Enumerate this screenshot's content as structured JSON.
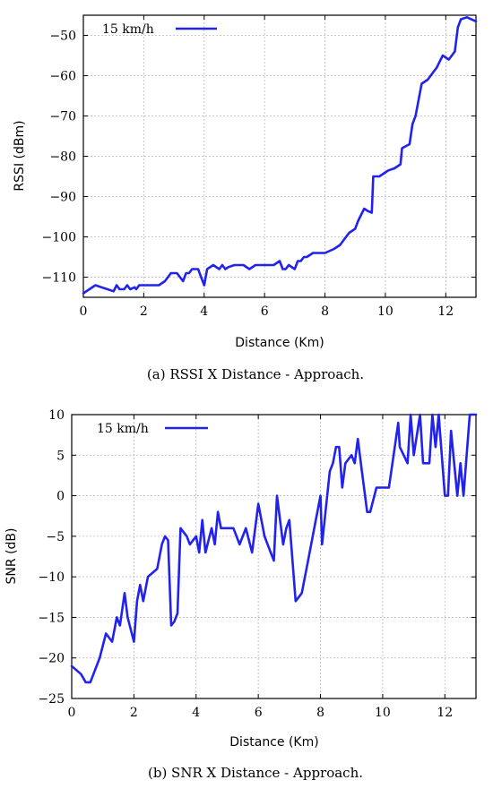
{
  "chart_data": [
    {
      "type": "line",
      "xlabel": "Distance (Km)",
      "ylabel": "RSSI (dBm)",
      "xlim": [
        0,
        13
      ],
      "ylim": [
        -115,
        -45
      ],
      "xticks": [
        0,
        2,
        4,
        6,
        8,
        10,
        12
      ],
      "yticks": [
        -110,
        -100,
        -90,
        -80,
        -70,
        -60,
        -50
      ],
      "grid": true,
      "legend_position": "top-left",
      "caption": "(a) RSSI X Distance - Approach.",
      "series": [
        {
          "name": "15 km/h",
          "color": "#2222ee",
          "x": [
            0,
            0.2,
            0.4,
            0.6,
            0.8,
            1.0,
            1.1,
            1.2,
            1.35,
            1.45,
            1.55,
            1.7,
            1.75,
            1.85,
            2.0,
            2.5,
            2.7,
            2.9,
            3.1,
            3.3,
            3.4,
            3.5,
            3.6,
            3.8,
            4.0,
            4.1,
            4.3,
            4.5,
            4.6,
            4.7,
            4.8,
            5.0,
            5.3,
            5.5,
            5.7,
            6.0,
            6.3,
            6.5,
            6.6,
            6.7,
            6.8,
            7.0,
            7.1,
            7.2,
            7.3,
            7.4,
            7.6,
            8.0,
            8.3,
            8.5,
            8.7,
            8.8,
            9.0,
            9.1,
            9.3,
            9.4,
            9.55,
            9.6,
            9.8,
            10.0,
            10.1,
            10.3,
            10.5,
            10.55,
            10.8,
            10.9,
            11.0,
            11.2,
            11.4,
            11.7,
            11.9,
            12.1,
            12.3,
            12.4,
            12.5,
            12.7,
            13.0
          ],
          "y": [
            -114,
            -113,
            -112,
            -112.5,
            -113,
            -113.5,
            -112,
            -113,
            -113,
            -112,
            -113,
            -112.5,
            -113,
            -112,
            -112,
            -112,
            -111,
            -109,
            -109,
            -111,
            -109,
            -109,
            -108,
            -108,
            -112,
            -108,
            -107,
            -108,
            -107,
            -108,
            -107.5,
            -107,
            -107,
            -108,
            -107,
            -107,
            -107,
            -106,
            -108,
            -108,
            -107,
            -108,
            -106,
            -106,
            -105,
            -105,
            -104,
            -104,
            -103,
            -102,
            -100,
            -99,
            -98,
            -96,
            -93,
            -93.5,
            -94,
            -85,
            -85,
            -84,
            -83.5,
            -83,
            -82,
            -78,
            -77,
            -72,
            -70,
            -62,
            -61,
            -58,
            -55,
            -56,
            -54,
            -48,
            -46,
            -45.5,
            -46.5
          ]
        }
      ]
    },
    {
      "type": "line",
      "xlabel": "Distance (Km)",
      "ylabel": "SNR (dB)",
      "xlim": [
        0,
        13
      ],
      "ylim": [
        -25,
        10
      ],
      "xticks": [
        0,
        2,
        4,
        6,
        8,
        10,
        12
      ],
      "yticks": [
        -25,
        -20,
        -15,
        -10,
        -5,
        0,
        5,
        10
      ],
      "grid": true,
      "legend_position": "top-left",
      "caption": "(b) SNR X Distance - Approach.",
      "series": [
        {
          "name": "15 km/h",
          "color": "#2222ee",
          "x": [
            0,
            0.3,
            0.45,
            0.6,
            0.9,
            1.1,
            1.3,
            1.45,
            1.55,
            1.7,
            1.8,
            2.0,
            2.1,
            2.2,
            2.3,
            2.45,
            2.6,
            2.75,
            2.9,
            3.0,
            3.1,
            3.2,
            3.3,
            3.4,
            3.5,
            3.7,
            3.8,
            4.0,
            4.1,
            4.2,
            4.3,
            4.5,
            4.6,
            4.7,
            4.8,
            5.0,
            5.2,
            5.4,
            5.6,
            5.8,
            6.0,
            6.2,
            6.4,
            6.5,
            6.6,
            6.8,
            6.9,
            7.0,
            7.1,
            7.2,
            7.4,
            7.6,
            7.8,
            8.0,
            8.05,
            8.3,
            8.4,
            8.5,
            8.6,
            8.7,
            8.8,
            9.0,
            9.1,
            9.2,
            9.3,
            9.5,
            9.6,
            9.8,
            10.0,
            10.2,
            10.5,
            10.55,
            10.8,
            10.9,
            11.0,
            11.2,
            11.3,
            11.5,
            11.6,
            11.7,
            11.8,
            12.0,
            12.1,
            12.2,
            12.4,
            12.5,
            12.6,
            12.8,
            13.0
          ],
          "y": [
            -21,
            -22,
            -23,
            -23,
            -20,
            -17,
            -18,
            -15,
            -16,
            -12,
            -15,
            -18,
            -13,
            -11,
            -13,
            -10,
            -9.5,
            -9,
            -6,
            -5,
            -5.5,
            -16,
            -15.5,
            -14.5,
            -4,
            -5,
            -6,
            -5,
            -7,
            -3,
            -7,
            -4,
            -6,
            -2,
            -4,
            -4,
            -4,
            -6,
            -4,
            -7,
            -1,
            -5,
            -7,
            -8,
            0,
            -6,
            -4,
            -3,
            -8,
            -13,
            -12,
            -8,
            -4,
            0,
            -6,
            3,
            4,
            6,
            6,
            1,
            4,
            5,
            4,
            7,
            4,
            -2,
            -2,
            1,
            1,
            1,
            9,
            6,
            4,
            10,
            5,
            10,
            4,
            4,
            10,
            6,
            10,
            0,
            0,
            8,
            0,
            4,
            0,
            10,
            10
          ]
        }
      ]
    }
  ]
}
